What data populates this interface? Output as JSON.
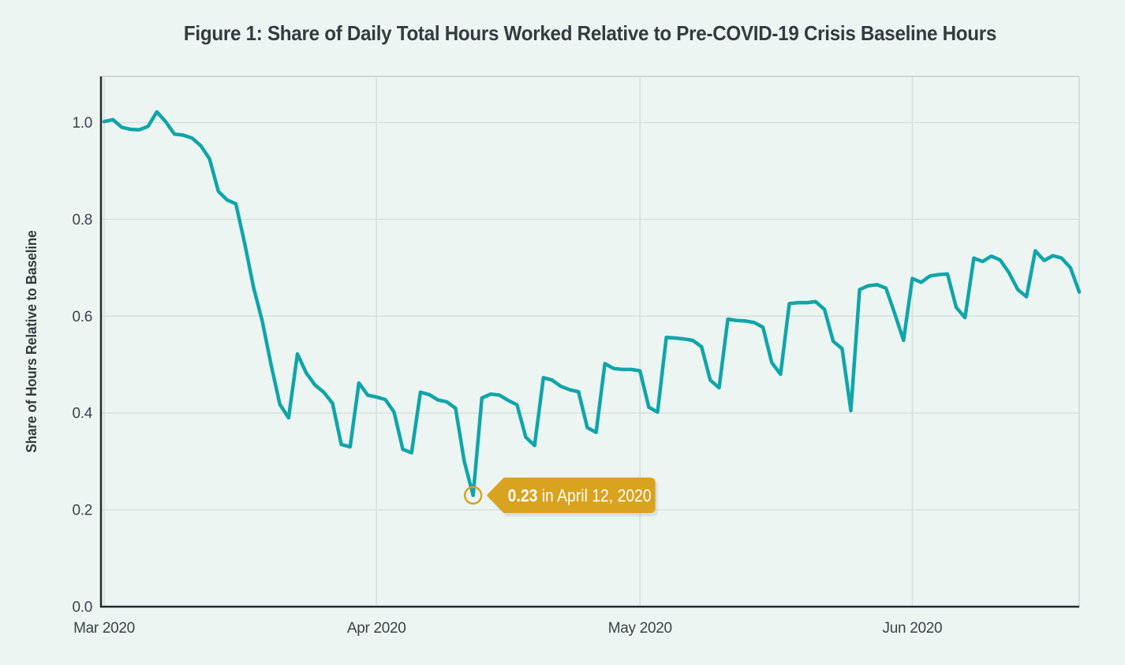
{
  "figure": {
    "background": "#ecf5f2"
  },
  "chart_data": {
    "type": "line",
    "title": "Figure 1: Share of Daily Total Hours Worked Relative to Pre-COVID-19 Crisis Baseline Hours",
    "xlabel": "",
    "ylabel": "Share of Hours Relative to Baseline",
    "grid": true,
    "legend": "none",
    "y_ticks": [
      0.0,
      0.2,
      0.4,
      0.6,
      0.8,
      1.0
    ],
    "y_tick_labels": [
      "0.0",
      "0.2",
      "0.4",
      "0.6",
      "0.8",
      "1.0"
    ],
    "ylim": [
      0.0,
      1.095
    ],
    "x_ticks": [
      {
        "date": "2020-03-01",
        "label": "Mar 2020"
      },
      {
        "date": "2020-04-01",
        "label": "Apr 2020"
      },
      {
        "date": "2020-05-01",
        "label": "May 2020"
      },
      {
        "date": "2020-06-01",
        "label": "Jun 2020"
      }
    ],
    "series": [
      {
        "name": "share-of-daily-total-hours-worked",
        "color": "#10a5a9",
        "frequency": "daily",
        "start_date": "2020-03-01",
        "end_date": "2020-06-20",
        "values": [
          1.002,
          1.006,
          0.99,
          0.986,
          0.985,
          0.992,
          1.022,
          1.002,
          0.976,
          0.974,
          0.968,
          0.952,
          0.925,
          0.858,
          0.84,
          0.832,
          0.75,
          0.66,
          0.59,
          0.5,
          0.418,
          0.39,
          0.522,
          0.483,
          0.458,
          0.443,
          0.42,
          0.335,
          0.33,
          0.462,
          0.437,
          0.433,
          0.428,
          0.402,
          0.325,
          0.318,
          0.443,
          0.438,
          0.427,
          0.423,
          0.41,
          0.3,
          0.23,
          0.431,
          0.439,
          0.437,
          0.426,
          0.417,
          0.35,
          0.333,
          0.473,
          0.468,
          0.455,
          0.448,
          0.444,
          0.37,
          0.36,
          0.502,
          0.492,
          0.49,
          0.49,
          0.487,
          0.412,
          0.402,
          0.556,
          0.555,
          0.553,
          0.55,
          0.537,
          0.468,
          0.452,
          0.594,
          0.591,
          0.59,
          0.587,
          0.577,
          0.504,
          0.48,
          0.626,
          0.628,
          0.628,
          0.63,
          0.614,
          0.548,
          0.533,
          0.405,
          0.655,
          0.663,
          0.665,
          0.658,
          0.605,
          0.55,
          0.678,
          0.67,
          0.683,
          0.686,
          0.687,
          0.618,
          0.597,
          0.72,
          0.713,
          0.724,
          0.716,
          0.69,
          0.655,
          0.64,
          0.735,
          0.715,
          0.725,
          0.72,
          0.7,
          0.65
        ]
      }
    ],
    "annotation": {
      "bold_text": "0.23",
      "text": " in April 12, 2020",
      "date": "2020-04-12",
      "value": 0.23,
      "flag_color": "#d9a21f",
      "text_color": "#ffffff",
      "marker": "open-circle"
    }
  },
  "colors": {
    "background": "#ecf5f2",
    "line": "#10a5a9",
    "gridline": "#d5e0dc",
    "plot_border_light": "#ccd7d3",
    "axis": "#222c2e",
    "tick_text": "#394345",
    "title_text": "#333b3e",
    "annotation_gold": "#d9a21f"
  }
}
